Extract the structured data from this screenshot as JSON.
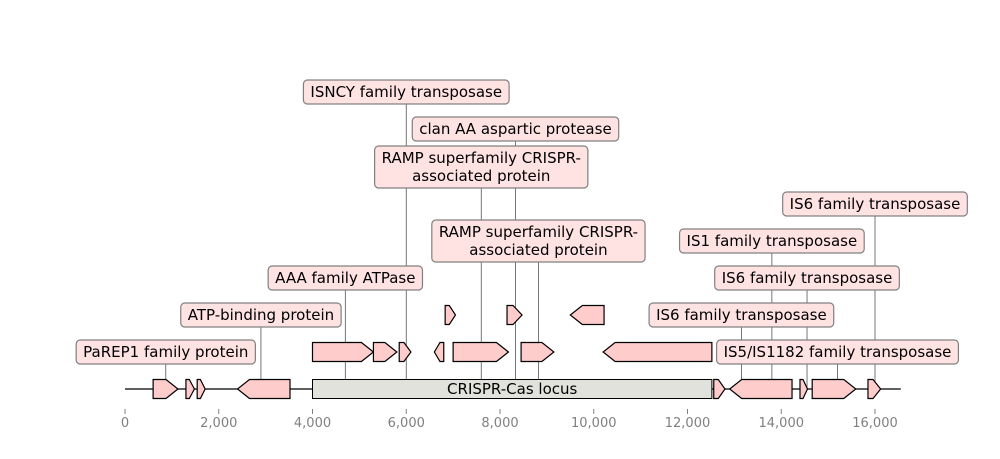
{
  "chart_data": {
    "type": "gene-map",
    "title": "",
    "xlabel": "",
    "xlim": [
      0,
      16700
    ],
    "x_ticks": [
      0,
      2000,
      4000,
      6000,
      8000,
      10000,
      12000,
      14000,
      16000
    ],
    "x_tick_labels": [
      "0",
      "2,000",
      "4,000",
      "6,000",
      "8,000",
      "10,000",
      "12,000",
      "14,000",
      "16,000"
    ],
    "sequence_range": [
      0,
      16550
    ],
    "locus": {
      "start": 4000,
      "end": 12520,
      "label": "CRISPR-Cas locus",
      "color": "#e2e2dc"
    },
    "feature_color": "#ffcccc",
    "label_box_color": "#ffe3e3",
    "features": [
      {
        "start": 600,
        "end": 1130,
        "strand": 1,
        "track": 0
      },
      {
        "start": 1300,
        "end": 1480,
        "strand": 1,
        "track": 0
      },
      {
        "start": 1540,
        "end": 1710,
        "strand": 1,
        "track": 0
      },
      {
        "start": 2400,
        "end": 3520,
        "strand": -1,
        "track": 0
      },
      {
        "start": 12560,
        "end": 12800,
        "strand": 1,
        "track": 0
      },
      {
        "start": 12900,
        "end": 14230,
        "strand": -1,
        "track": 0
      },
      {
        "start": 14400,
        "end": 14560,
        "strand": 1,
        "track": 0
      },
      {
        "start": 14660,
        "end": 15590,
        "strand": 1,
        "track": 0
      },
      {
        "start": 15850,
        "end": 16120,
        "strand": 1,
        "track": 0
      },
      {
        "start": 4000,
        "end": 5300,
        "strand": 1,
        "track": 1
      },
      {
        "start": 5300,
        "end": 5800,
        "strand": 1,
        "track": 1
      },
      {
        "start": 5850,
        "end": 6100,
        "strand": 1,
        "track": 1
      },
      {
        "start": 6600,
        "end": 6800,
        "strand": -1,
        "track": 1
      },
      {
        "start": 7000,
        "end": 8180,
        "strand": 1,
        "track": 1
      },
      {
        "start": 8450,
        "end": 9150,
        "strand": 1,
        "track": 1
      },
      {
        "start": 10200,
        "end": 12520,
        "strand": -1,
        "track": 1
      },
      {
        "start": 6830,
        "end": 7050,
        "strand": 1,
        "track": 2
      },
      {
        "start": 8150,
        "end": 8470,
        "strand": 1,
        "track": 2
      },
      {
        "start": 9500,
        "end": 10220,
        "strand": -1,
        "track": 2
      }
    ],
    "annotations": [
      {
        "lines": [
          "PaREP1 family protein"
        ],
        "x": 870,
        "level": 1
      },
      {
        "lines": [
          "ATP-binding protein"
        ],
        "x": 2900,
        "level": 2
      },
      {
        "lines": [
          "AAA family ATPase"
        ],
        "x": 4700,
        "level": 3
      },
      {
        "lines": [
          "RAMP superfamily CRISPR-",
          "associated protein"
        ],
        "x": 8820,
        "level": 4
      },
      {
        "lines": [
          "RAMP superfamily CRISPR-",
          "associated protein"
        ],
        "x": 7600,
        "level": 6
      },
      {
        "lines": [
          "clan AA aspartic protease"
        ],
        "x": 8330,
        "level": 7
      },
      {
        "lines": [
          "ISNCY family transposase"
        ],
        "x": 6000,
        "level": 8
      },
      {
        "lines": [
          "IS5/IS1182 family transposase"
        ],
        "x": 15200,
        "level": 1
      },
      {
        "lines": [
          "IS6 family transposase"
        ],
        "x": 13150,
        "level": 2
      },
      {
        "lines": [
          "IS6 family transposase"
        ],
        "x": 14550,
        "level": 3
      },
      {
        "lines": [
          "IS1 family transposase"
        ],
        "x": 13800,
        "level": 4
      },
      {
        "lines": [
          "IS6 family transposase"
        ],
        "x": 16000,
        "level": 5
      }
    ]
  }
}
